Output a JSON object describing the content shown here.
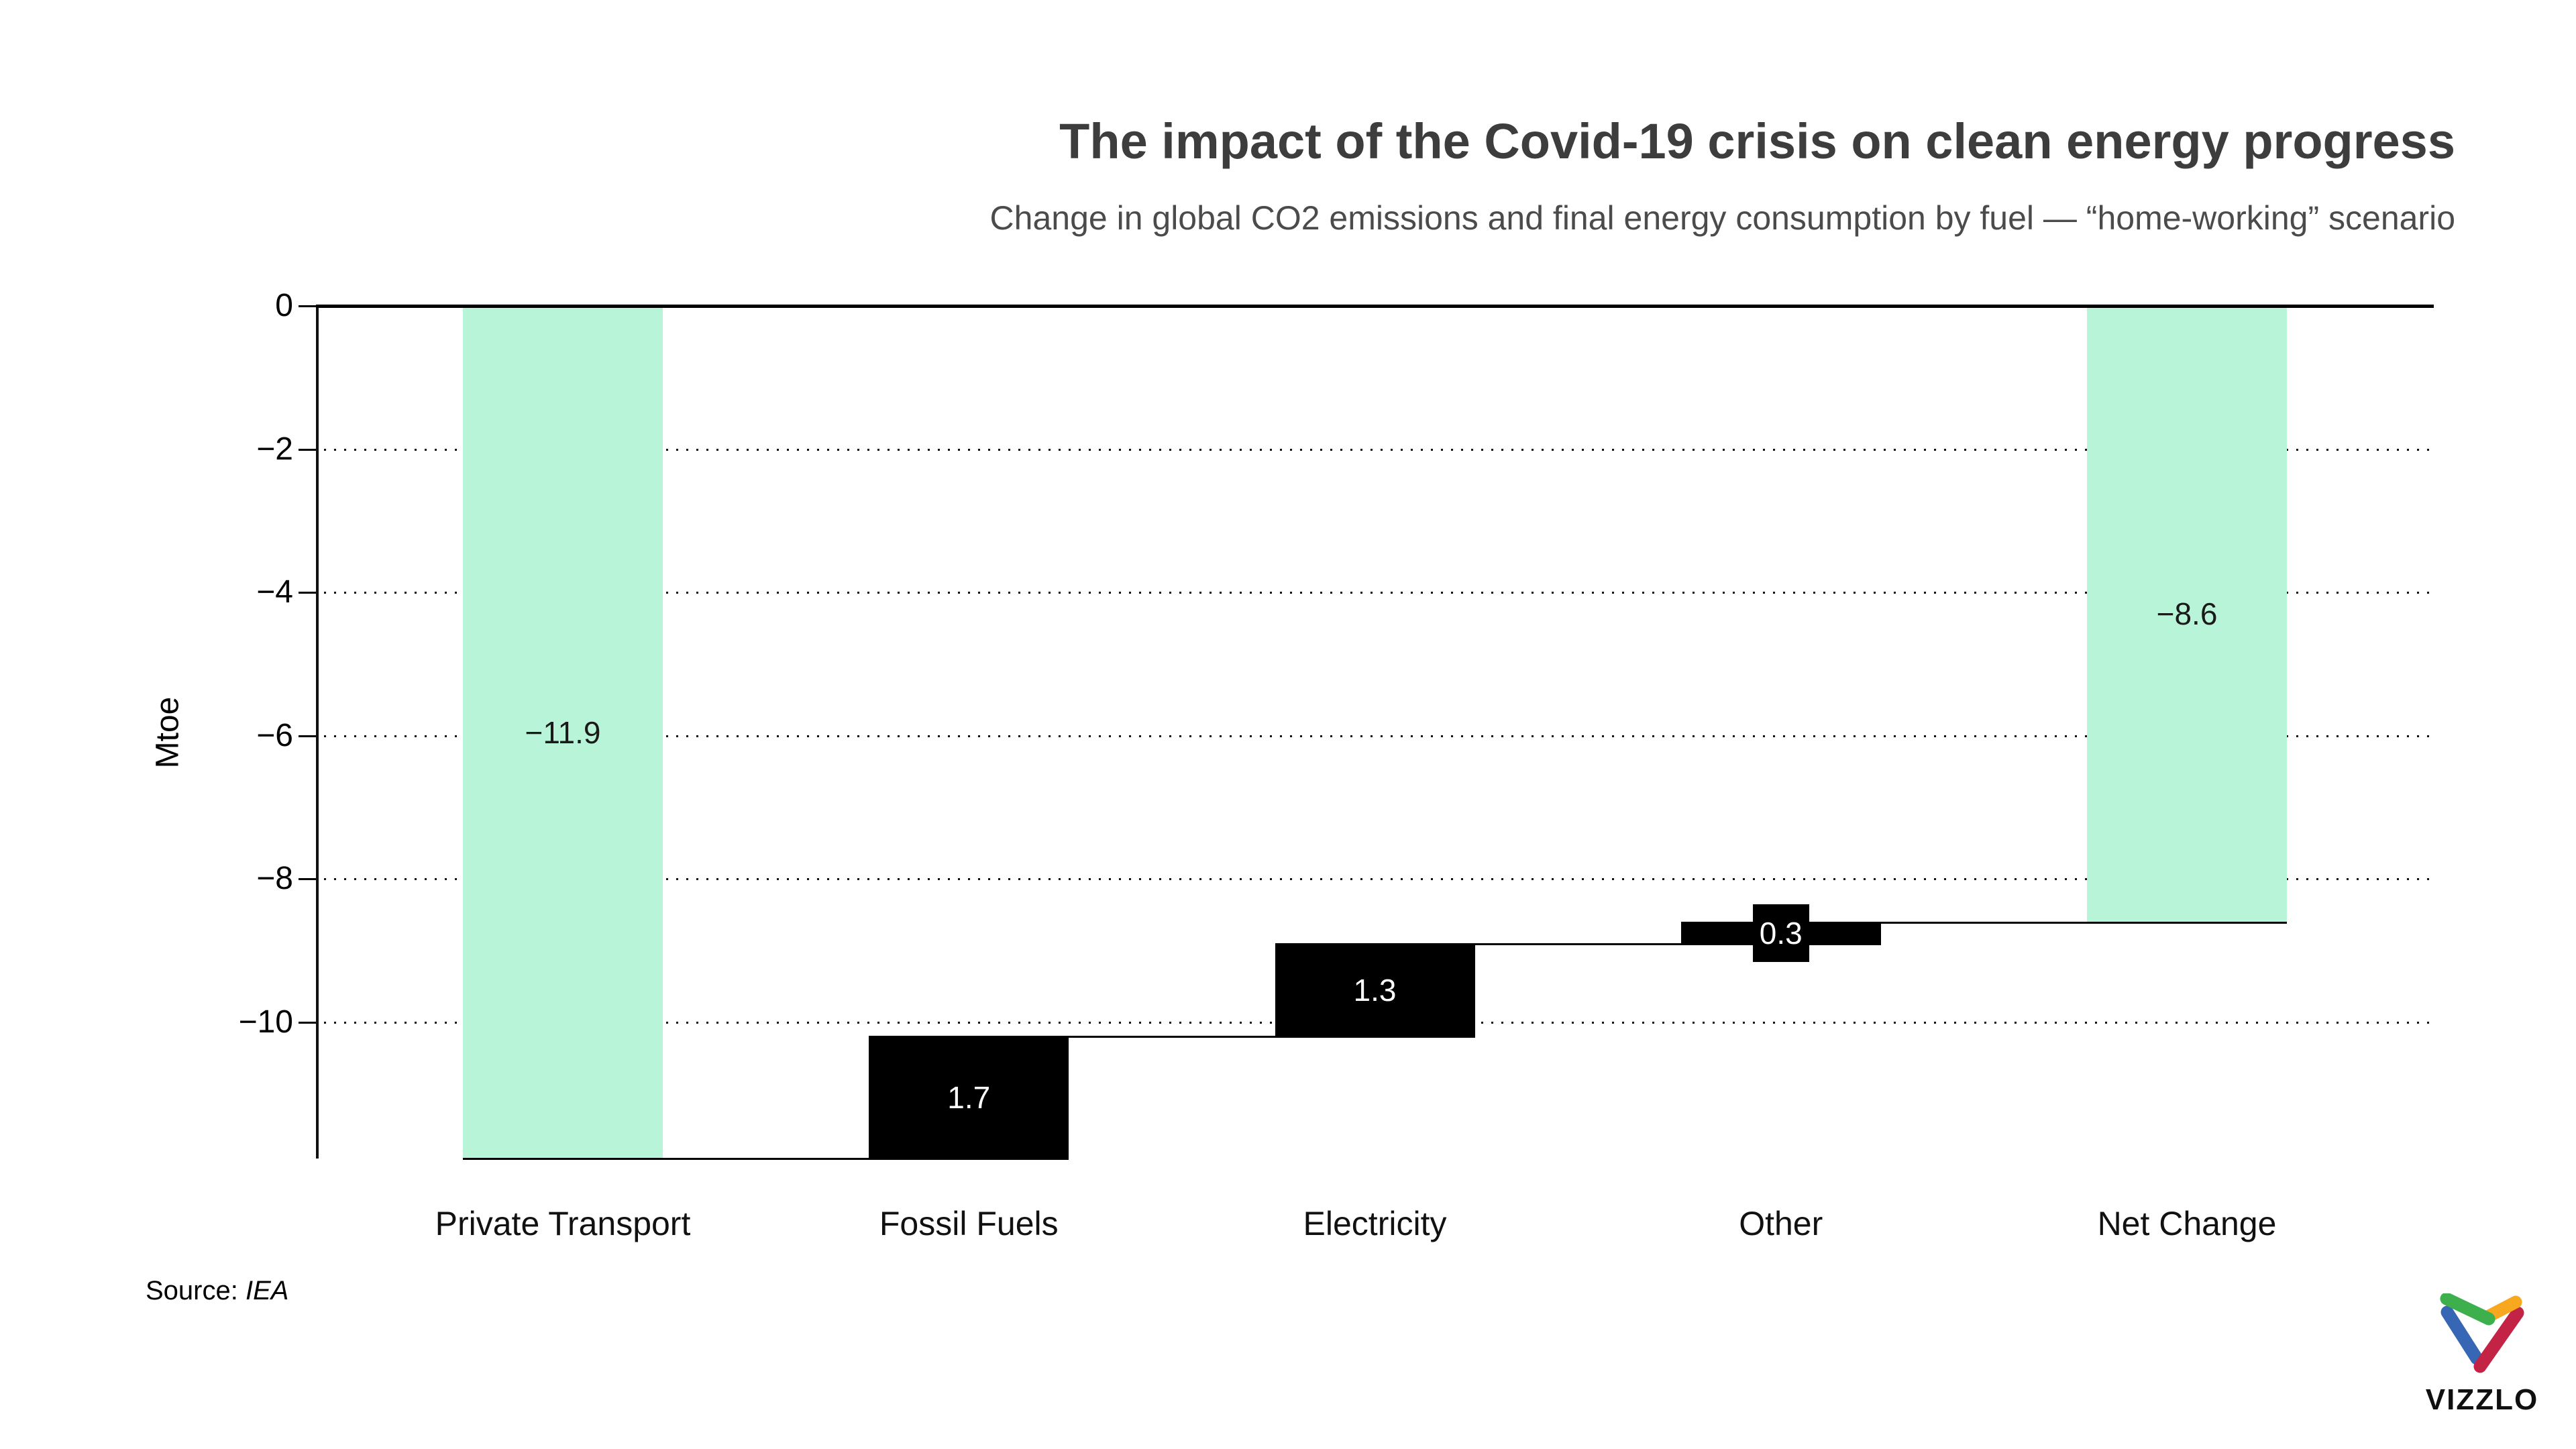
{
  "chart_data": {
    "type": "waterfall",
    "title": "The impact of the Covid-19 crisis on clean energy progress",
    "subtitle": "Change in global CO2 emissions and final energy consumption by fuel — “home-working” scenario",
    "categories": [
      "Private Transport",
      "Fossil Fuels",
      "Electricity",
      "Other",
      "Net Change"
    ],
    "values": [
      -11.9,
      1.7,
      1.3,
      0.3,
      -8.6
    ],
    "value_labels": [
      "−11.9",
      "1.7",
      "1.3",
      "0.3",
      "−8.6"
    ],
    "cumulative": [
      -11.9,
      -10.2,
      -8.9,
      -8.6,
      -8.6
    ],
    "bar_roles": [
      "decrease",
      "increase",
      "increase",
      "increase",
      "total"
    ],
    "ylabel": "Mtoe",
    "yticks": [
      0,
      -2,
      -4,
      -6,
      -8,
      -10
    ],
    "ytick_labels": [
      "0",
      "−2",
      "−4",
      "−6",
      "−8",
      "−10"
    ],
    "ylim": [
      0,
      -11.9
    ],
    "grid": "dotted-horizontal",
    "legend": "none",
    "colors": {
      "decrease_bar": "#b7f4d8",
      "total_bar": "#b7f4d8",
      "increase_bar": "#000000",
      "label_on_mint": "#1a1a1a",
      "label_on_black": "#ffffff",
      "axis": "#000000",
      "title_text": "#3d3d3d",
      "subtitle_text": "#4b4b4b"
    }
  },
  "source": {
    "prefix": "Source:",
    "name": "IEA"
  },
  "logo": {
    "wordmark": "VIZZLO",
    "colors": {
      "green": "#3daf4c",
      "orange": "#f7a81e",
      "blue": "#3767b4",
      "red": "#c32344"
    }
  }
}
